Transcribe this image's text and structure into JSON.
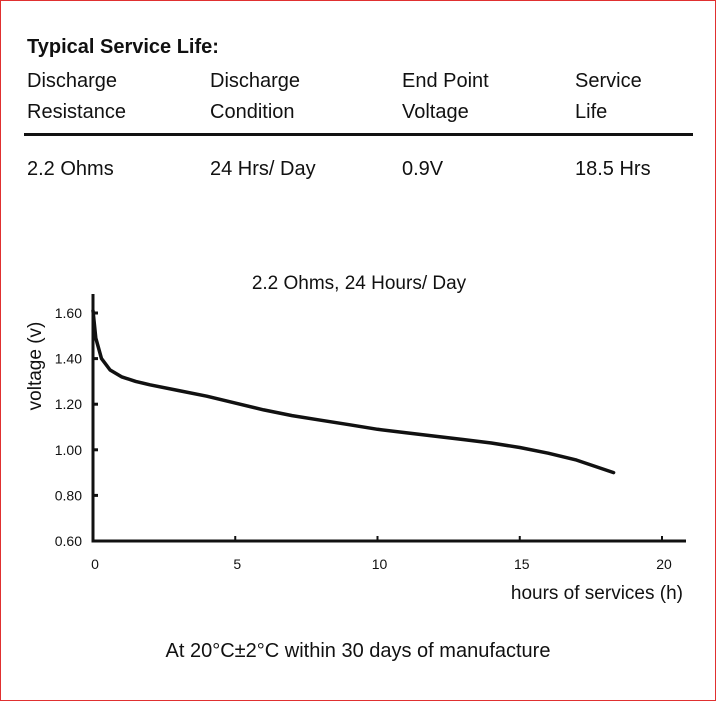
{
  "table": {
    "title": "Typical Service Life:",
    "headers": [
      "Discharge\nResistance",
      "Discharge\nCondition",
      "End Point\nVoltage",
      "Service\nLife"
    ],
    "row": [
      "2.2 Ohms",
      "24 Hrs/ Day",
      "0.9V",
      "18.5 Hrs"
    ]
  },
  "chart_data": {
    "type": "line",
    "title": "2.2 Ohms, 24 Hours/ Day",
    "xlabel": "hours of services (h)",
    "ylabel": "voltage (v)",
    "xlim": [
      0,
      21
    ],
    "ylim": [
      0.6,
      1.7
    ],
    "xticks": [
      0,
      5,
      10,
      15,
      20
    ],
    "yticks": [
      0.6,
      0.8,
      1.0,
      1.2,
      1.4,
      1.6
    ],
    "ytick_labels": [
      "0.60",
      "0.80",
      "1.00",
      "1.20",
      "1.40",
      "1.60"
    ],
    "grid": false,
    "series": [
      {
        "x": [
          0,
          0.1,
          0.3,
          0.6,
          1,
          1.5,
          2,
          3,
          4,
          5,
          6,
          7,
          8,
          9,
          10,
          11,
          12,
          13,
          14,
          15,
          16,
          17,
          18.3
        ],
        "y": [
          1.61,
          1.49,
          1.4,
          1.35,
          1.32,
          1.3,
          1.285,
          1.26,
          1.235,
          1.205,
          1.175,
          1.15,
          1.13,
          1.11,
          1.09,
          1.075,
          1.06,
          1.045,
          1.03,
          1.01,
          0.985,
          0.955,
          0.9
        ]
      }
    ]
  },
  "caption": "At 20°C±2°C within 30 days of manufacture",
  "colors": {
    "border": "#e03030",
    "ink": "#111111"
  }
}
